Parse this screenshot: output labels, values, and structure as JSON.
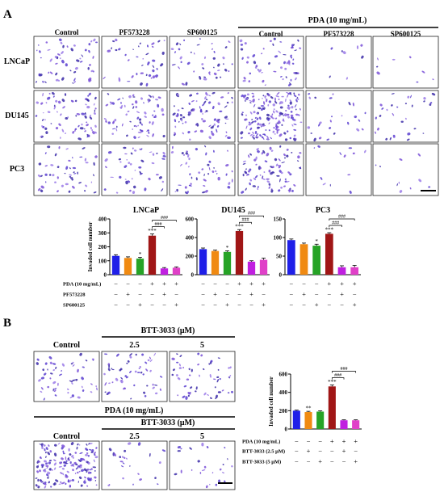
{
  "panel_a": {
    "letter": "A",
    "group_header": "PDA (10 mg/mL)",
    "columns": [
      "Control",
      "PF573228",
      "SP600125",
      "Control",
      "PF573228",
      "SP600125"
    ],
    "rows": [
      "LNCaP",
      "DU145",
      "PC3"
    ],
    "densities": [
      [
        55,
        45,
        45,
        60,
        8,
        8
      ],
      [
        80,
        75,
        85,
        170,
        25,
        30
      ],
      [
        50,
        45,
        50,
        85,
        12,
        10
      ]
    ]
  },
  "panel_b": {
    "letter": "B",
    "top_header": "BTT-3033 (μM)",
    "top_columns": [
      "Control",
      "2.5",
      "5"
    ],
    "bottom_group_header": "PDA (10 mg/mL)",
    "bottom_header": "BTT-3033 (μM)",
    "bottom_columns": [
      "Control",
      "2.5",
      "5"
    ],
    "densities_top": [
      55,
      55,
      55
    ],
    "densities_bottom": [
      170,
      25,
      25
    ]
  },
  "colors": [
    "#1f1fe8",
    "#f08a12",
    "#26a326",
    "#a01616",
    "#c020e0",
    "#e040c8"
  ],
  "stain_colors": [
    "#5a3fd0",
    "#7b52d8",
    "#3b2aa8",
    "#9a7ae8"
  ],
  "chart_data": [
    {
      "type": "bar",
      "title": "LNCaP",
      "ylabel": "Invaded cell number",
      "ylim": [
        0,
        400
      ],
      "yticks": [
        "0",
        "100",
        "200",
        "300",
        "400"
      ],
      "values": [
        135,
        120,
        115,
        280,
        45,
        50
      ],
      "errors": [
        8,
        8,
        10,
        12,
        6,
        6
      ],
      "stars": [
        "",
        "",
        "*",
        "***",
        "",
        ""
      ],
      "brackets": [
        "###",
        "###"
      ],
      "condition_labels": [
        "PDA (10 mg/mL)",
        "PF573228",
        "SP600125"
      ],
      "condition_signs": [
        [
          "−",
          "−",
          "−",
          "+",
          "+",
          "+"
        ],
        [
          "−",
          "+",
          "−",
          "−",
          "+",
          "−"
        ],
        [
          "−",
          "−",
          "+",
          "−",
          "−",
          "+"
        ]
      ]
    },
    {
      "type": "bar",
      "title": "DU145",
      "ylabel": "",
      "ylim": [
        0,
        600
      ],
      "yticks": [
        "0",
        "200",
        "400",
        "600"
      ],
      "values": [
        275,
        255,
        245,
        470,
        140,
        160
      ],
      "errors": [
        12,
        10,
        12,
        15,
        10,
        18
      ],
      "stars": [
        "",
        "",
        "*",
        "***",
        "",
        ""
      ],
      "brackets": [
        "###",
        "###"
      ],
      "condition_signs": [
        [
          "−",
          "−",
          "−",
          "+",
          "+",
          "+"
        ],
        [
          "−",
          "+",
          "−",
          "−",
          "+",
          "−"
        ],
        [
          "−",
          "−",
          "+",
          "−",
          "−",
          "+"
        ]
      ]
    },
    {
      "type": "bar",
      "title": "PC3",
      "ylabel": "",
      "ylim": [
        0,
        150
      ],
      "yticks": [
        "0",
        "50",
        "100",
        "150"
      ],
      "values": [
        93,
        82,
        78,
        110,
        20,
        20
      ],
      "errors": [
        3,
        3,
        4,
        3,
        4,
        5
      ],
      "stars": [
        "",
        "",
        "*",
        "***",
        "",
        ""
      ],
      "brackets": [
        "###",
        "###"
      ],
      "condition_signs": [
        [
          "−",
          "−",
          "−",
          "+",
          "+",
          "+"
        ],
        [
          "−",
          "+",
          "−",
          "−",
          "+",
          "−"
        ],
        [
          "−",
          "−",
          "+",
          "−",
          "−",
          "+"
        ]
      ]
    },
    {
      "type": "bar",
      "title": "",
      "ylabel": "Invaded cell number",
      "ylim": [
        0,
        600
      ],
      "yticks": [
        "0",
        "200",
        "400",
        "600"
      ],
      "values": [
        200,
        185,
        190,
        465,
        95,
        95
      ],
      "errors": [
        6,
        8,
        8,
        15,
        5,
        5
      ],
      "stars": [
        "",
        "**",
        "",
        "***",
        "",
        ""
      ],
      "brackets": [
        "###",
        "###"
      ],
      "condition_labels": [
        "PDA (10 mg/mL)",
        "BTT-3033 (2.5 μM)",
        "BTT-3033 (5 μM)"
      ],
      "condition_signs": [
        [
          "−",
          "−",
          "−",
          "+",
          "+",
          "+"
        ],
        [
          "−",
          "+",
          "−",
          "−",
          "+",
          "−"
        ],
        [
          "−",
          "−",
          "+",
          "−",
          "−",
          "+"
        ]
      ]
    }
  ]
}
